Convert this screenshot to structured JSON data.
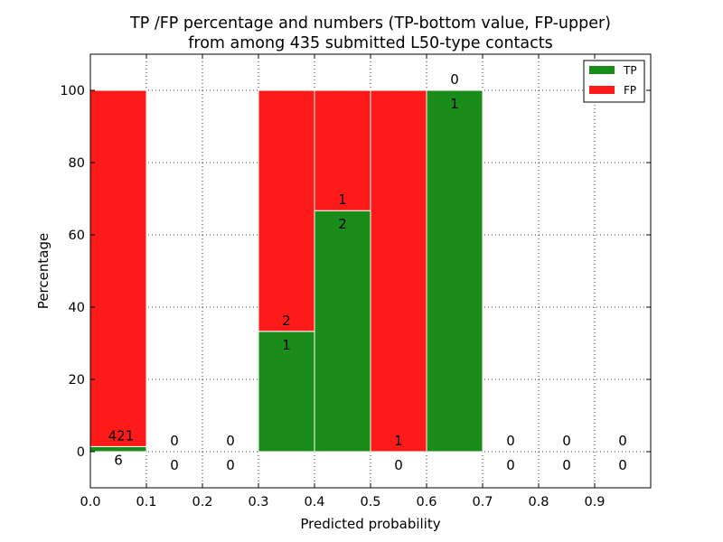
{
  "chart_data": {
    "type": "bar",
    "stacked": true,
    "title": "TP /FP percentage and numbers (TP-bottom value, FP-upper)\nfrom among 435 submitted L50-type contacts",
    "xlabel": "Predicted probability",
    "ylabel": "Percentage",
    "xlim": [
      0,
      1.0
    ],
    "ylim": [
      -10,
      110
    ],
    "xticks": [
      "0.0",
      "0.1",
      "0.2",
      "0.3",
      "0.4",
      "0.5",
      "0.6",
      "0.7",
      "0.8",
      "0.9"
    ],
    "yticks": [
      "0",
      "20",
      "40",
      "60",
      "80",
      "100"
    ],
    "grid": true,
    "legend_position": "top-right",
    "bins": [
      {
        "start": 0.0,
        "end": 0.1,
        "tp_pct": 1.4,
        "fp_pct": 98.6,
        "tp_count": "6",
        "fp_count": "421"
      },
      {
        "start": 0.1,
        "end": 0.2,
        "tp_pct": 0,
        "fp_pct": 0,
        "tp_count": "0",
        "fp_count": "0"
      },
      {
        "start": 0.2,
        "end": 0.3,
        "tp_pct": 0,
        "fp_pct": 0,
        "tp_count": "0",
        "fp_count": "0"
      },
      {
        "start": 0.3,
        "end": 0.4,
        "tp_pct": 33.3,
        "fp_pct": 66.7,
        "tp_count": "1",
        "fp_count": "2"
      },
      {
        "start": 0.4,
        "end": 0.5,
        "tp_pct": 66.7,
        "fp_pct": 33.3,
        "tp_count": "2",
        "fp_count": "1"
      },
      {
        "start": 0.5,
        "end": 0.6,
        "tp_pct": 0,
        "fp_pct": 100,
        "tp_count": "0",
        "fp_count": "1"
      },
      {
        "start": 0.6,
        "end": 0.7,
        "tp_pct": 100,
        "fp_pct": 0,
        "tp_count": "1",
        "fp_count": "0"
      },
      {
        "start": 0.7,
        "end": 0.8,
        "tp_pct": 0,
        "fp_pct": 0,
        "tp_count": "0",
        "fp_count": "0"
      },
      {
        "start": 0.8,
        "end": 0.9,
        "tp_pct": 0,
        "fp_pct": 0,
        "tp_count": "0",
        "fp_count": "0"
      },
      {
        "start": 0.9,
        "end": 1.0,
        "tp_pct": 0,
        "fp_pct": 0,
        "tp_count": "0",
        "fp_count": "0"
      }
    ],
    "series": [
      {
        "name": "TP",
        "color": "#1a8c1a"
      },
      {
        "name": "FP",
        "color": "#ff1a1a"
      }
    ]
  }
}
